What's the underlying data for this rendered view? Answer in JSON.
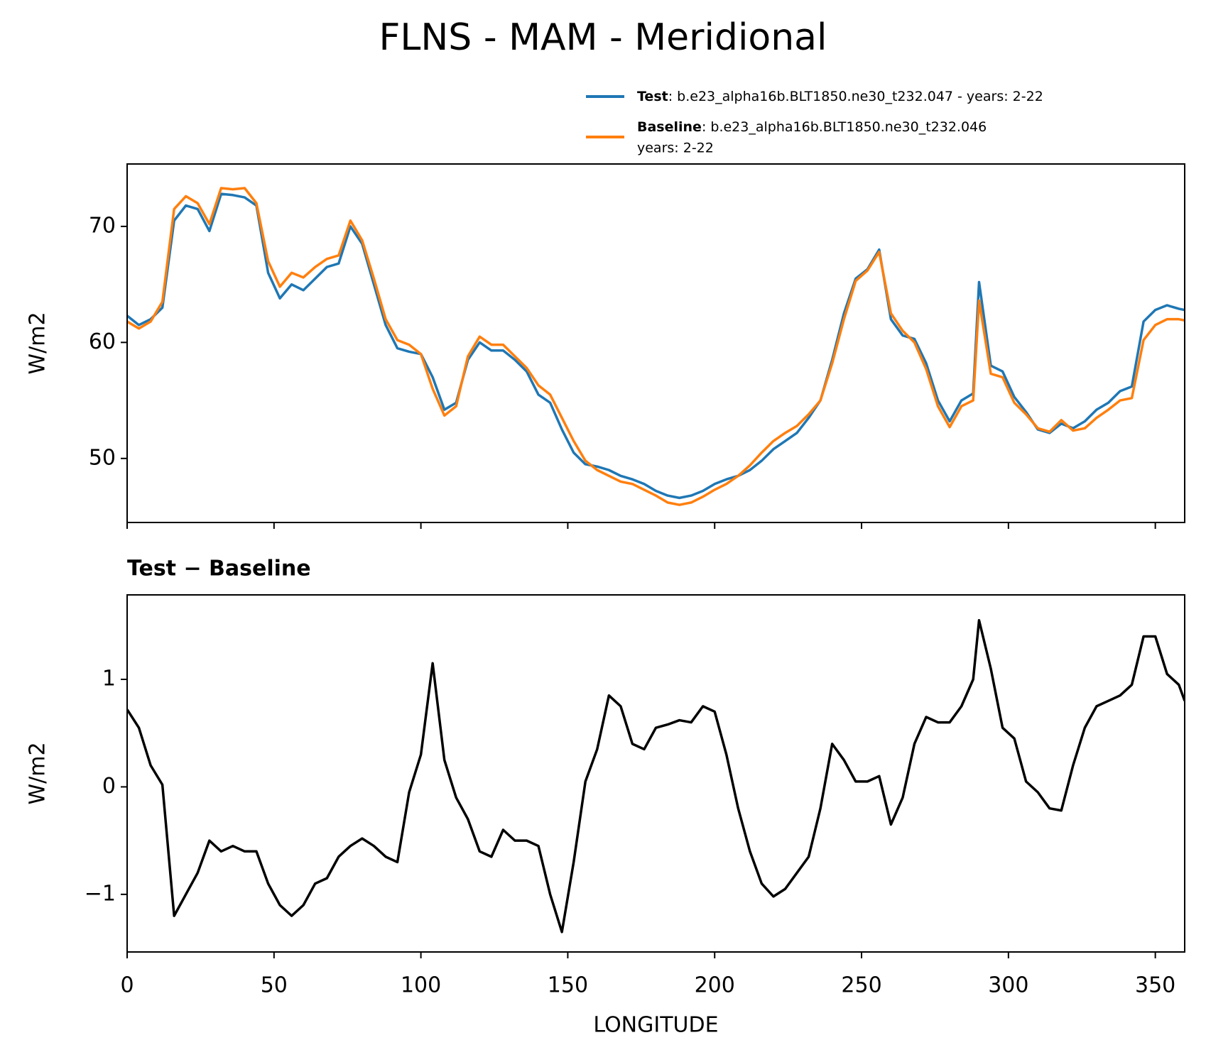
{
  "title": "FLNS - MAM - Meridional",
  "chart_data": [
    {
      "type": "line",
      "ylabel": "W/m2",
      "x": [
        0,
        4,
        8,
        12,
        16,
        20,
        24,
        28,
        32,
        36,
        40,
        44,
        48,
        52,
        56,
        60,
        64,
        68,
        72,
        76,
        80,
        84,
        88,
        92,
        96,
        100,
        104,
        108,
        112,
        116,
        120,
        124,
        128,
        132,
        136,
        140,
        144,
        148,
        152,
        156,
        160,
        164,
        168,
        172,
        176,
        180,
        184,
        188,
        192,
        196,
        200,
        204,
        208,
        212,
        216,
        220,
        224,
        228,
        232,
        236,
        240,
        244,
        248,
        252,
        256,
        260,
        264,
        268,
        272,
        276,
        280,
        284,
        288,
        290,
        294,
        298,
        302,
        306,
        310,
        314,
        318,
        322,
        326,
        330,
        334,
        338,
        342,
        346,
        350,
        354,
        358,
        360
      ],
      "series": [
        {
          "name": "Test",
          "description": [
            ": b.e23_alpha16b.BLT1850.ne30_t232.047 - years: 2-22"
          ],
          "color": "#1f77b4",
          "values": [
            62.3,
            61.5,
            62.0,
            63.0,
            70.5,
            71.8,
            71.5,
            69.6,
            72.8,
            72.7,
            72.5,
            71.8,
            66.0,
            63.8,
            65.0,
            64.5,
            65.5,
            66.5,
            66.8,
            70.0,
            68.5,
            65.0,
            61.5,
            59.5,
            59.2,
            59.0,
            57.0,
            54.2,
            54.8,
            58.5,
            60.0,
            59.3,
            59.3,
            58.5,
            57.5,
            55.5,
            54.8,
            52.5,
            50.5,
            49.5,
            49.3,
            49.0,
            48.5,
            48.2,
            47.8,
            47.2,
            46.8,
            46.6,
            46.8,
            47.2,
            47.8,
            48.2,
            48.5,
            49.0,
            49.8,
            50.8,
            51.5,
            52.2,
            53.5,
            55.0,
            58.5,
            62.5,
            65.5,
            66.3,
            68.0,
            62.0,
            60.6,
            60.3,
            58.2,
            55.0,
            53.2,
            55.0,
            55.6,
            65.2,
            58.0,
            57.5,
            55.3,
            54.0,
            52.5,
            52.2,
            53.0,
            52.6,
            53.2,
            54.2,
            54.8,
            55.8,
            56.2,
            61.8,
            62.8,
            63.2,
            62.9,
            62.8
          ]
        },
        {
          "name": "Baseline",
          "description": [
            ": b.e23_alpha16b.BLT1850.ne30_t232.046",
            "years: 2-22"
          ],
          "color": "#ff7f0e",
          "values": [
            61.8,
            61.2,
            61.8,
            63.5,
            71.5,
            72.6,
            72.0,
            70.2,
            73.3,
            73.2,
            73.3,
            72.0,
            67.0,
            64.8,
            66.0,
            65.6,
            66.5,
            67.2,
            67.5,
            70.5,
            68.8,
            65.5,
            62.0,
            60.2,
            59.8,
            59.0,
            56.0,
            53.7,
            54.5,
            58.8,
            60.5,
            59.8,
            59.8,
            58.8,
            57.8,
            56.3,
            55.5,
            53.5,
            51.5,
            49.8,
            49.0,
            48.5,
            48.0,
            47.8,
            47.3,
            46.8,
            46.2,
            46.0,
            46.2,
            46.7,
            47.3,
            47.8,
            48.5,
            49.4,
            50.5,
            51.5,
            52.2,
            52.8,
            53.8,
            55.0,
            58.2,
            62.0,
            65.3,
            66.2,
            67.8,
            62.5,
            61.0,
            60.0,
            57.7,
            54.5,
            52.7,
            54.5,
            55.0,
            63.6,
            57.3,
            57.0,
            54.8,
            53.8,
            52.6,
            52.3,
            53.3,
            52.4,
            52.6,
            53.5,
            54.2,
            55.0,
            55.2,
            60.2,
            61.5,
            62.0,
            62.0,
            61.9
          ]
        }
      ],
      "xlim": [
        0,
        360
      ],
      "xticks": [
        0,
        50,
        100,
        150,
        200,
        250,
        300,
        350
      ],
      "ylim": [
        44.48,
        75.38
      ],
      "yticks": [
        50,
        60,
        70
      ]
    },
    {
      "type": "line",
      "title": "Test − Baseline",
      "ylabel": "W/m2",
      "xlabel": "LONGITUDE",
      "x": [
        0,
        4,
        8,
        12,
        16,
        20,
        24,
        28,
        32,
        36,
        40,
        44,
        48,
        52,
        56,
        60,
        64,
        68,
        72,
        76,
        80,
        84,
        88,
        92,
        96,
        100,
        104,
        108,
        112,
        116,
        120,
        124,
        128,
        132,
        136,
        140,
        144,
        148,
        152,
        156,
        160,
        164,
        168,
        172,
        176,
        180,
        184,
        188,
        192,
        196,
        200,
        204,
        208,
        212,
        216,
        220,
        224,
        228,
        232,
        236,
        240,
        244,
        248,
        252,
        256,
        260,
        264,
        268,
        272,
        276,
        280,
        284,
        288,
        290,
        294,
        298,
        302,
        306,
        310,
        314,
        318,
        322,
        326,
        330,
        334,
        338,
        342,
        346,
        350,
        354,
        358,
        360
      ],
      "series": [
        {
          "name": "Test − Baseline",
          "color": "#000000",
          "values": [
            0.72,
            0.55,
            0.2,
            0.02,
            -1.2,
            -1.0,
            -0.8,
            -0.5,
            -0.6,
            -0.55,
            -0.6,
            -0.6,
            -0.9,
            -1.1,
            -1.2,
            -1.1,
            -0.9,
            -0.85,
            -0.65,
            -0.55,
            -0.48,
            -0.55,
            -0.65,
            -0.7,
            -0.05,
            0.3,
            1.15,
            0.25,
            -0.1,
            -0.3,
            -0.6,
            -0.65,
            -0.4,
            -0.5,
            -0.5,
            -0.55,
            -1.0,
            -1.35,
            -0.7,
            0.05,
            0.35,
            0.85,
            0.75,
            0.4,
            0.35,
            0.55,
            0.58,
            0.62,
            0.6,
            0.75,
            0.7,
            0.3,
            -0.2,
            -0.6,
            -0.9,
            -1.02,
            -0.95,
            -0.8,
            -0.65,
            -0.2,
            0.4,
            0.25,
            0.05,
            0.05,
            0.1,
            -0.35,
            -0.1,
            0.4,
            0.65,
            0.6,
            0.6,
            0.75,
            1.0,
            1.55,
            1.1,
            0.55,
            0.45,
            0.05,
            -0.05,
            -0.2,
            -0.22,
            0.2,
            0.55,
            0.75,
            0.8,
            0.85,
            0.95,
            1.4,
            1.4,
            1.05,
            0.95,
            0.8
          ]
        }
      ],
      "xlim": [
        0,
        360
      ],
      "xticks": [
        0,
        50,
        100,
        150,
        200,
        250,
        300,
        350
      ],
      "ylim": [
        -1.536,
        1.786
      ],
      "yticks": [
        {
          "value": -1,
          "label": "−1"
        },
        0,
        1
      ]
    }
  ]
}
